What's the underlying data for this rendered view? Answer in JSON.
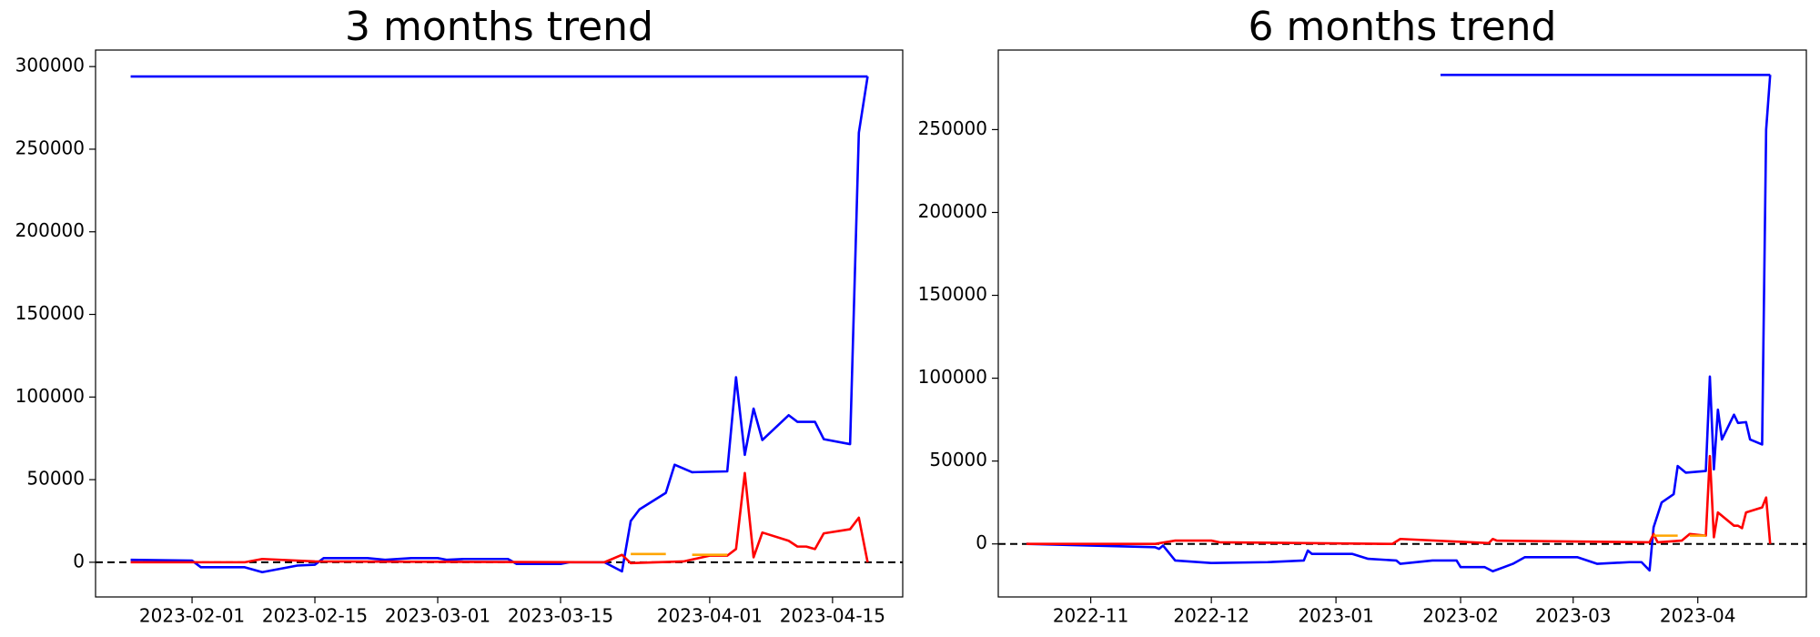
{
  "chart_data": [
    {
      "type": "line",
      "title": "3 months trend",
      "xlim": [
        "2023-01-21",
        "2023-04-23"
      ],
      "ylim": [
        -21000,
        310000
      ],
      "xticks": [
        "2023-02-01",
        "2023-02-15",
        "2023-03-01",
        "2023-03-15",
        "2023-04-01",
        "2023-04-15"
      ],
      "yticks": [
        0,
        50000,
        100000,
        150000,
        200000,
        250000,
        300000
      ],
      "hline": 0,
      "series": [
        {
          "color": "#0000ff",
          "x": [
            "2023-01-25",
            "2023-04-19"
          ],
          "values": [
            294000,
            294000
          ]
        },
        {
          "color": "#0000ff",
          "x": [
            "2023-01-25",
            "2023-02-01",
            "2023-02-02",
            "2023-02-07",
            "2023-02-09",
            "2023-02-13",
            "2023-02-15",
            "2023-02-16",
            "2023-02-21",
            "2023-02-23",
            "2023-02-26",
            "2023-03-01",
            "2023-03-02",
            "2023-03-04",
            "2023-03-09",
            "2023-03-10",
            "2023-03-15",
            "2023-03-16",
            "2023-03-20",
            "2023-03-22",
            "2023-03-23",
            "2023-03-24",
            "2023-03-27",
            "2023-03-28",
            "2023-03-30",
            "2023-04-03",
            "2023-04-04",
            "2023-04-05",
            "2023-04-06",
            "2023-04-07",
            "2023-04-10",
            "2023-04-11",
            "2023-04-13",
            "2023-04-14",
            "2023-04-17",
            "2023-04-18",
            "2023-04-19"
          ],
          "values": [
            1500,
            1000,
            -3000,
            -3000,
            -6000,
            -2000,
            -1500,
            2500,
            2500,
            1500,
            2500,
            2500,
            1500,
            2000,
            2000,
            -1000,
            -1000,
            0,
            0,
            -5500,
            25000,
            32000,
            42000,
            59000,
            54500,
            55000,
            112000,
            65000,
            93000,
            74000,
            89000,
            85000,
            85000,
            74500,
            71500,
            260000,
            294000
          ]
        },
        {
          "color": "#ff0000",
          "x": [
            "2023-01-25",
            "2023-02-07",
            "2023-02-09",
            "2023-02-15",
            "2023-03-20",
            "2023-03-22",
            "2023-03-23",
            "2023-03-29",
            "2023-04-01",
            "2023-04-03",
            "2023-04-04",
            "2023-04-05",
            "2023-04-06",
            "2023-04-07",
            "2023-04-10",
            "2023-04-11",
            "2023-04-12",
            "2023-04-13",
            "2023-04-14",
            "2023-04-17",
            "2023-04-18",
            "2023-04-19"
          ],
          "values": [
            0,
            0,
            2000,
            500,
            0,
            4500,
            -500,
            500,
            4000,
            4000,
            8000,
            54000,
            3000,
            18000,
            13000,
            9500,
            9500,
            8000,
            17500,
            20000,
            27000,
            0
          ]
        },
        {
          "color": "#ffa500",
          "x": [
            "2023-03-23",
            "2023-03-27",
            "2023-03-28",
            "2023-03-30",
            "2023-04-03"
          ],
          "values": [
            5000,
            5000,
            null,
            4500,
            4500
          ]
        }
      ]
    },
    {
      "type": "line",
      "title": "6 months trend",
      "xlim": [
        "2022-10-09",
        "2023-04-28"
      ],
      "ylim": [
        -32000,
        298000
      ],
      "xticks": [
        "2022-11",
        "2022-12",
        "2023-01",
        "2023-02",
        "2023-03",
        "2023-04"
      ],
      "yticks": [
        0,
        50000,
        100000,
        150000,
        200000,
        250000
      ],
      "hline": 0,
      "series": [
        {
          "color": "#0000ff",
          "x": [
            "2023-01-27",
            "2023-04-19"
          ],
          "values": [
            283000,
            283000
          ]
        },
        {
          "color": "#0000ff",
          "x": [
            "2022-10-16",
            "2022-11-17",
            "2022-11-18",
            "2022-11-19",
            "2022-11-22",
            "2022-12-01",
            "2022-12-15",
            "2022-12-24",
            "2022-12-25",
            "2022-12-26",
            "2023-01-05",
            "2023-01-09",
            "2023-01-16",
            "2023-01-17",
            "2023-01-25",
            "2023-01-31",
            "2023-02-01",
            "2023-02-07",
            "2023-02-09",
            "2023-02-14",
            "2023-02-17",
            "2023-02-24",
            "2023-03-02",
            "2023-03-07",
            "2023-03-15",
            "2023-03-18",
            "2023-03-20",
            "2023-03-21",
            "2023-03-23",
            "2023-03-26",
            "2023-03-27",
            "2023-03-29",
            "2023-04-03",
            "2023-04-04",
            "2023-04-05",
            "2023-04-06",
            "2023-04-07",
            "2023-04-10",
            "2023-04-11",
            "2023-04-13",
            "2023-04-14",
            "2023-04-17",
            "2023-04-18",
            "2023-04-19"
          ],
          "values": [
            0,
            -2000,
            -3000,
            -1000,
            -10000,
            -11500,
            -11000,
            -10000,
            -4000,
            -6000,
            -6000,
            -9000,
            -10000,
            -12000,
            -10000,
            -10000,
            -14000,
            -14000,
            -16500,
            -12000,
            -8000,
            -8000,
            -8000,
            -12000,
            -11000,
            -11000,
            -16000,
            10000,
            25000,
            30000,
            47000,
            43000,
            44000,
            101000,
            45000,
            81000,
            63000,
            78000,
            73000,
            73500,
            63000,
            60000,
            250000,
            283000
          ]
        },
        {
          "color": "#ff0000",
          "x": [
            "2022-10-16",
            "2022-11-17",
            "2022-11-22",
            "2022-12-01",
            "2022-12-03",
            "2023-01-15",
            "2023-01-17",
            "2023-02-08",
            "2023-02-09",
            "2023-02-10",
            "2023-03-20",
            "2023-03-21",
            "2023-03-22",
            "2023-03-28",
            "2023-03-30",
            "2023-04-03",
            "2023-04-04",
            "2023-04-05",
            "2023-04-06",
            "2023-04-10",
            "2023-04-11",
            "2023-04-12",
            "2023-04-13",
            "2023-04-17",
            "2023-04-18",
            "2023-04-19"
          ],
          "values": [
            0,
            0,
            2000,
            2000,
            1000,
            0,
            3000,
            500,
            3000,
            2000,
            1000,
            6000,
            1000,
            2000,
            6000,
            5000,
            53000,
            4000,
            19000,
            11000,
            11000,
            9500,
            19000,
            22000,
            28000,
            0
          ]
        },
        {
          "color": "#ffa500",
          "x": [
            "2023-03-21",
            "2023-03-27",
            "2023-03-28",
            "2023-03-30",
            "2023-04-03"
          ],
          "values": [
            5000,
            5000,
            null,
            5000,
            5000
          ]
        }
      ]
    }
  ]
}
